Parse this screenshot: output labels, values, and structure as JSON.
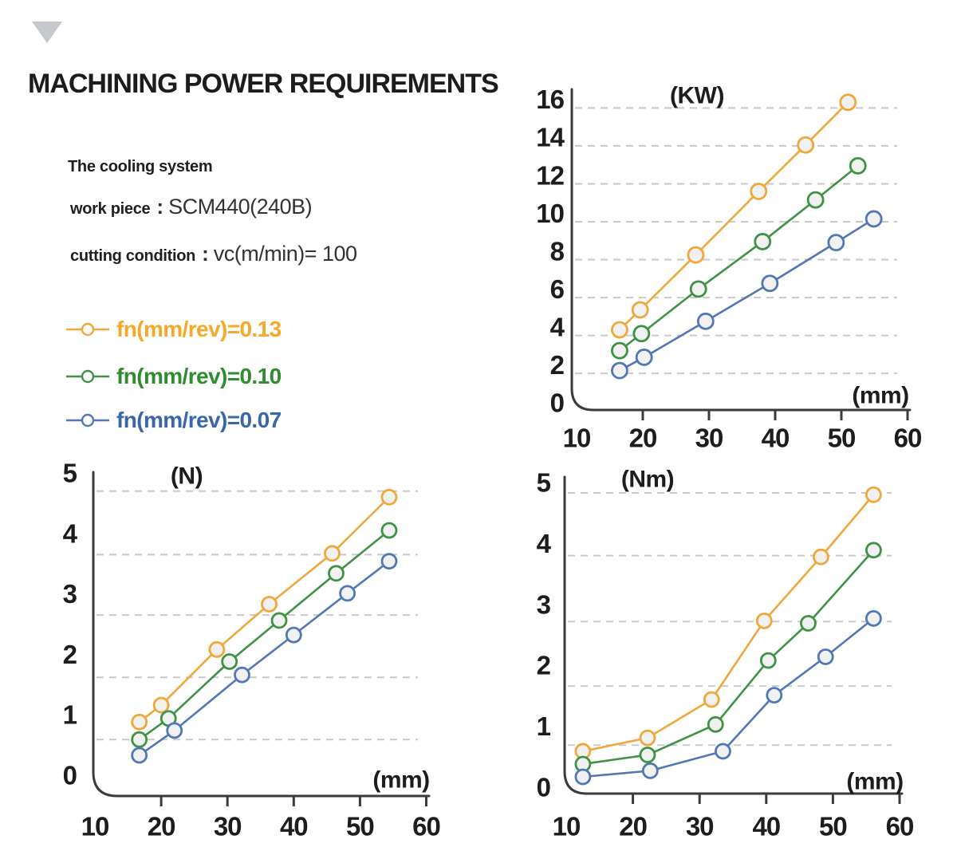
{
  "page": {
    "background": "#ffffff",
    "triangle_color": "#c5c8cc"
  },
  "header": {
    "title": "MACHINING POWER REQUIREMENTS"
  },
  "info": {
    "cooling": "The cooling system",
    "work_piece_label": "work piece",
    "work_piece_sep": ":",
    "work_piece_value": "SCM440(240B)",
    "cutting_label": "cutting condition",
    "cutting_sep": ":",
    "cutting_value": "vc(m/min)= 100"
  },
  "legend": {
    "items": [
      {
        "label": "fn(mm/rev)=0.13",
        "line_color": "#f0a73c",
        "text_color": "#f5a82a"
      },
      {
        "label": "fn(mm/rev)=0.10",
        "line_color": "#3f9245",
        "text_color": "#2f8c2f"
      },
      {
        "label": "fn(mm/rev)=0.07",
        "line_color": "#5277b3",
        "text_color": "#3a67ab"
      }
    ]
  },
  "colors": {
    "axis": "#3b3b3b",
    "grid": "#c9c9c9",
    "marker_fill": "#f1f1f1",
    "tick_text": "#1d1d1d"
  },
  "chart_data": [
    {
      "id": "kw",
      "type": "line",
      "title": "(KW)",
      "x_unit_label": "(mm)",
      "xlabel": "(mm)",
      "ylabel": "(KW)",
      "xlim": [
        10,
        60
      ],
      "ylim": [
        0,
        16
      ],
      "x_ticks": [
        10,
        20,
        30,
        40,
        50,
        60
      ],
      "y_ticks": [
        0,
        2,
        4,
        6,
        8,
        10,
        12,
        14,
        16
      ],
      "grid": "dashed-horizontal",
      "gridlines": [
        1.55,
        3.55,
        5.55,
        7.55,
        9.55,
        11.55,
        13.55,
        15.55
      ],
      "legend_position": "none",
      "series": [
        {
          "name": "fn(mm/rev)=0.13",
          "color": "#f0a73c",
          "x": [
            16.5,
            19.6,
            28.0,
            37.5,
            44.6,
            51.0
          ],
          "y": [
            3.85,
            4.9,
            7.8,
            11.15,
            13.6,
            15.85
          ]
        },
        {
          "name": "fn(mm/rev)=0.10",
          "color": "#3f9245",
          "x": [
            16.5,
            19.8,
            28.4,
            38.1,
            46.1,
            52.5
          ],
          "y": [
            2.75,
            3.65,
            6.0,
            8.5,
            10.7,
            12.5
          ]
        },
        {
          "name": "fn(mm/rev)=0.07",
          "color": "#5277b3",
          "x": [
            16.5,
            20.2,
            29.5,
            39.2,
            49.2,
            54.9
          ],
          "y": [
            1.7,
            2.4,
            4.3,
            6.3,
            8.45,
            9.7
          ]
        }
      ]
    },
    {
      "id": "n",
      "type": "line",
      "title": "(N)",
      "x_unit_label": "(mm)",
      "xlabel": "(mm)",
      "ylabel": "(N)",
      "xlim": [
        10,
        60
      ],
      "ylim": [
        0,
        5
      ],
      "x_ticks": [
        10,
        20,
        30,
        40,
        50,
        60
      ],
      "y_ticks": [
        0,
        1,
        2,
        3,
        4,
        5
      ],
      "grid": "dashed-horizontal",
      "gridlines": [
        0.59,
        1.62,
        2.65,
        3.65,
        4.7
      ],
      "legend_position": "none",
      "series": [
        {
          "name": "fn(mm/rev)=0.13",
          "color": "#f0a73c",
          "x": [
            16.7,
            20.0,
            28.4,
            36.3,
            45.8,
            54.4
          ],
          "y": [
            0.88,
            1.16,
            2.08,
            2.83,
            3.67,
            4.6
          ]
        },
        {
          "name": "fn(mm/rev)=0.10",
          "color": "#3f9245",
          "x": [
            16.7,
            21.1,
            30.3,
            37.8,
            46.4,
            54.4
          ],
          "y": [
            0.59,
            0.94,
            1.88,
            2.56,
            3.34,
            4.05
          ]
        },
        {
          "name": "fn(mm/rev)=0.07",
          "color": "#5277b3",
          "x": [
            16.7,
            22.0,
            32.2,
            40.0,
            48.1,
            54.4
          ],
          "y": [
            0.33,
            0.74,
            1.66,
            2.32,
            3.01,
            3.54
          ]
        }
      ]
    },
    {
      "id": "nm",
      "type": "line",
      "title": "(Nm)",
      "x_unit_label": "(mm)",
      "xlabel": "(mm)",
      "ylabel": "(Nm)",
      "xlim": [
        10,
        60
      ],
      "ylim": [
        0,
        5
      ],
      "x_ticks": [
        10,
        20,
        30,
        40,
        50,
        60
      ],
      "y_ticks": [
        0,
        1,
        2,
        3,
        4,
        5
      ],
      "grid": "dashed-horizontal",
      "gridlines": [
        0.69,
        1.66,
        2.72,
        3.8,
        4.83
      ],
      "legend_position": "none",
      "series": [
        {
          "name": "fn(mm/rev)=0.13",
          "color": "#f0a73c",
          "x": [
            12.5,
            22.2,
            31.8,
            39.7,
            48.2,
            56.1
          ],
          "y": [
            0.59,
            0.81,
            1.44,
            2.73,
            3.78,
            4.8
          ]
        },
        {
          "name": "fn(mm/rev)=0.10",
          "color": "#3f9245",
          "x": [
            12.5,
            22.2,
            32.4,
            40.3,
            46.3,
            56.1
          ],
          "y": [
            0.38,
            0.53,
            1.03,
            2.08,
            2.69,
            3.89
          ]
        },
        {
          "name": "fn(mm/rev)=0.07",
          "color": "#5277b3",
          "x": [
            12.5,
            22.6,
            33.5,
            41.2,
            48.9,
            56.1
          ],
          "y": [
            0.17,
            0.27,
            0.59,
            1.51,
            2.14,
            2.77
          ]
        }
      ]
    }
  ]
}
